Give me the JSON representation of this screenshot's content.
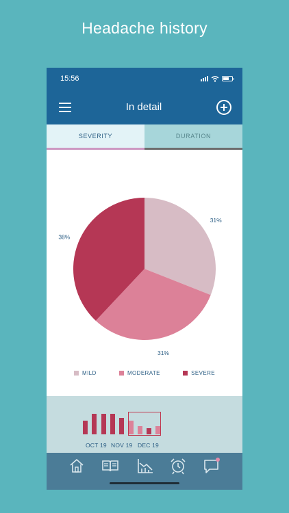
{
  "headline": "Headache history",
  "status": {
    "time": "15:56"
  },
  "header": {
    "title": "In detail"
  },
  "tabs": [
    {
      "label": "SEVERITY",
      "active": true
    },
    {
      "label": "DURATION",
      "active": false
    }
  ],
  "chart_data": {
    "type": "pie",
    "slices": [
      {
        "label": "MILD",
        "value": 31,
        "display": "31%",
        "color": "#d7bcc5"
      },
      {
        "label": "MODERATE",
        "value": 31,
        "display": "31%",
        "color": "#dc8198"
      },
      {
        "label": "SEVERE",
        "value": 38,
        "display": "38%",
        "color": "#b53755"
      }
    ],
    "legend_placement": "bottom"
  },
  "legend": [
    {
      "label": "MILD",
      "color": "#d7bcc5"
    },
    {
      "label": "MODERATE",
      "color": "#dc8198"
    },
    {
      "label": "SEVERE",
      "color": "#b53755"
    }
  ],
  "timeline": {
    "months": [
      "OCT 19",
      "NOV 19",
      "DEC 19"
    ],
    "bar_color": "#b53755",
    "selected_bar_color": "#dc8198"
  },
  "bottom_nav": [
    {
      "name": "home-icon"
    },
    {
      "name": "diary-icon"
    },
    {
      "name": "statistics-icon"
    },
    {
      "name": "alarm-clock-icon"
    },
    {
      "name": "chat-icon"
    }
  ],
  "colors": {
    "primary": "#1d6598",
    "background": "#5ab5bd",
    "nav": "#4b7c97"
  }
}
